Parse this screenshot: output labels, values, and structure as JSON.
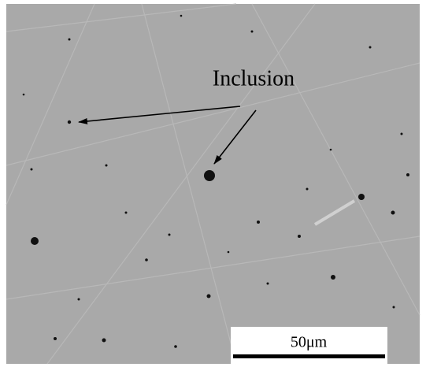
{
  "annotation": {
    "label": "Inclusion"
  },
  "scale_bar": {
    "label": "50μm"
  }
}
